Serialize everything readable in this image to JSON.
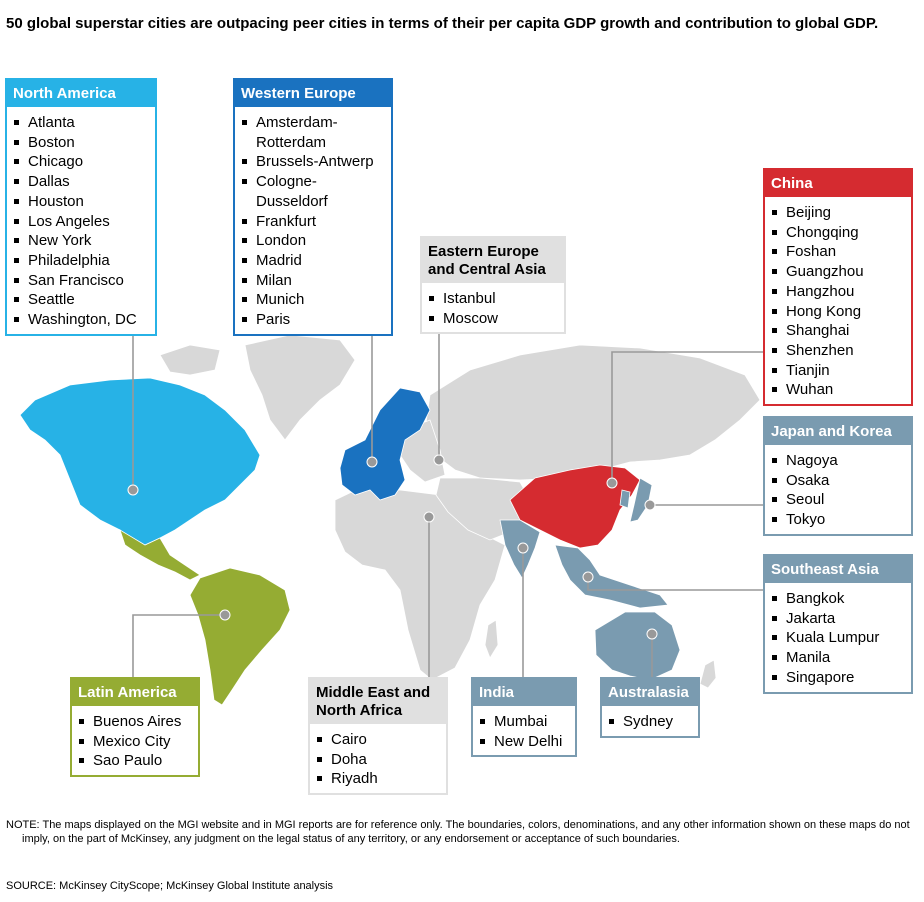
{
  "title": "50 global superstar cities are outpacing peer cities in terms of their per capita GDP growth and contribution to global GDP.",
  "colors": {
    "north_america": "#27b2e6",
    "western_europe": "#1a72c0",
    "china": "#d52b30",
    "latin_america": "#95ac33",
    "asia_blue_gray": "#7a9bb0",
    "gray_header": "#e0e0e0",
    "land": "#d8d8d8"
  },
  "regions": {
    "north_america": {
      "header": "North America",
      "cities": [
        "Atlanta",
        "Boston",
        "Chicago",
        "Dallas",
        "Houston",
        "Los Angeles",
        "New York",
        "Philadelphia",
        "San Francisco",
        "Seattle",
        "Washington, DC"
      ]
    },
    "western_europe": {
      "header": "Western Europe",
      "cities": [
        "Amsterdam-\nRotterdam",
        "Brussels-Antwerp",
        "Cologne-\nDusseldorf",
        "Frankfurt",
        "London",
        "Madrid",
        "Milan",
        "Munich",
        "Paris"
      ]
    },
    "eastern_europe": {
      "header": "Eastern Europe and Central Asia",
      "cities": [
        "Istanbul",
        "Moscow"
      ]
    },
    "china": {
      "header": "China",
      "cities": [
        "Beijing",
        "Chongqing",
        "Foshan",
        "Guangzhou",
        "Hangzhou",
        "Hong Kong",
        "Shanghai",
        "Shenzhen",
        "Tianjin",
        "Wuhan"
      ]
    },
    "japan_korea": {
      "header": "Japan and Korea",
      "cities": [
        "Nagoya",
        "Osaka",
        "Seoul",
        "Tokyo"
      ]
    },
    "southeast_asia": {
      "header": "Southeast Asia",
      "cities": [
        "Bangkok",
        "Jakarta",
        "Kuala Lumpur",
        "Manila",
        "Singapore"
      ]
    },
    "latin_america": {
      "header": "Latin America",
      "cities": [
        "Buenos Aires",
        "Mexico City",
        "Sao Paulo"
      ]
    },
    "middle_east": {
      "header": "Middle East and North Africa",
      "cities": [
        "Cairo",
        "Doha",
        "Riyadh"
      ]
    },
    "india": {
      "header": "India",
      "cities": [
        "Mumbai",
        "New Delhi"
      ]
    },
    "australasia": {
      "header": "Australasia",
      "cities": [
        "Sydney"
      ]
    }
  },
  "note": "NOTE: The maps displayed on the MGI website and in MGI reports are for reference only. The boundaries, colors, denominations, and any other information shown on these maps do not imply, on the part of McKinsey, any judgment on the legal status of any territory, or any endorsement or acceptance of such boundaries.",
  "source": "SOURCE:  McKinsey CityScope; McKinsey Global Institute analysis"
}
